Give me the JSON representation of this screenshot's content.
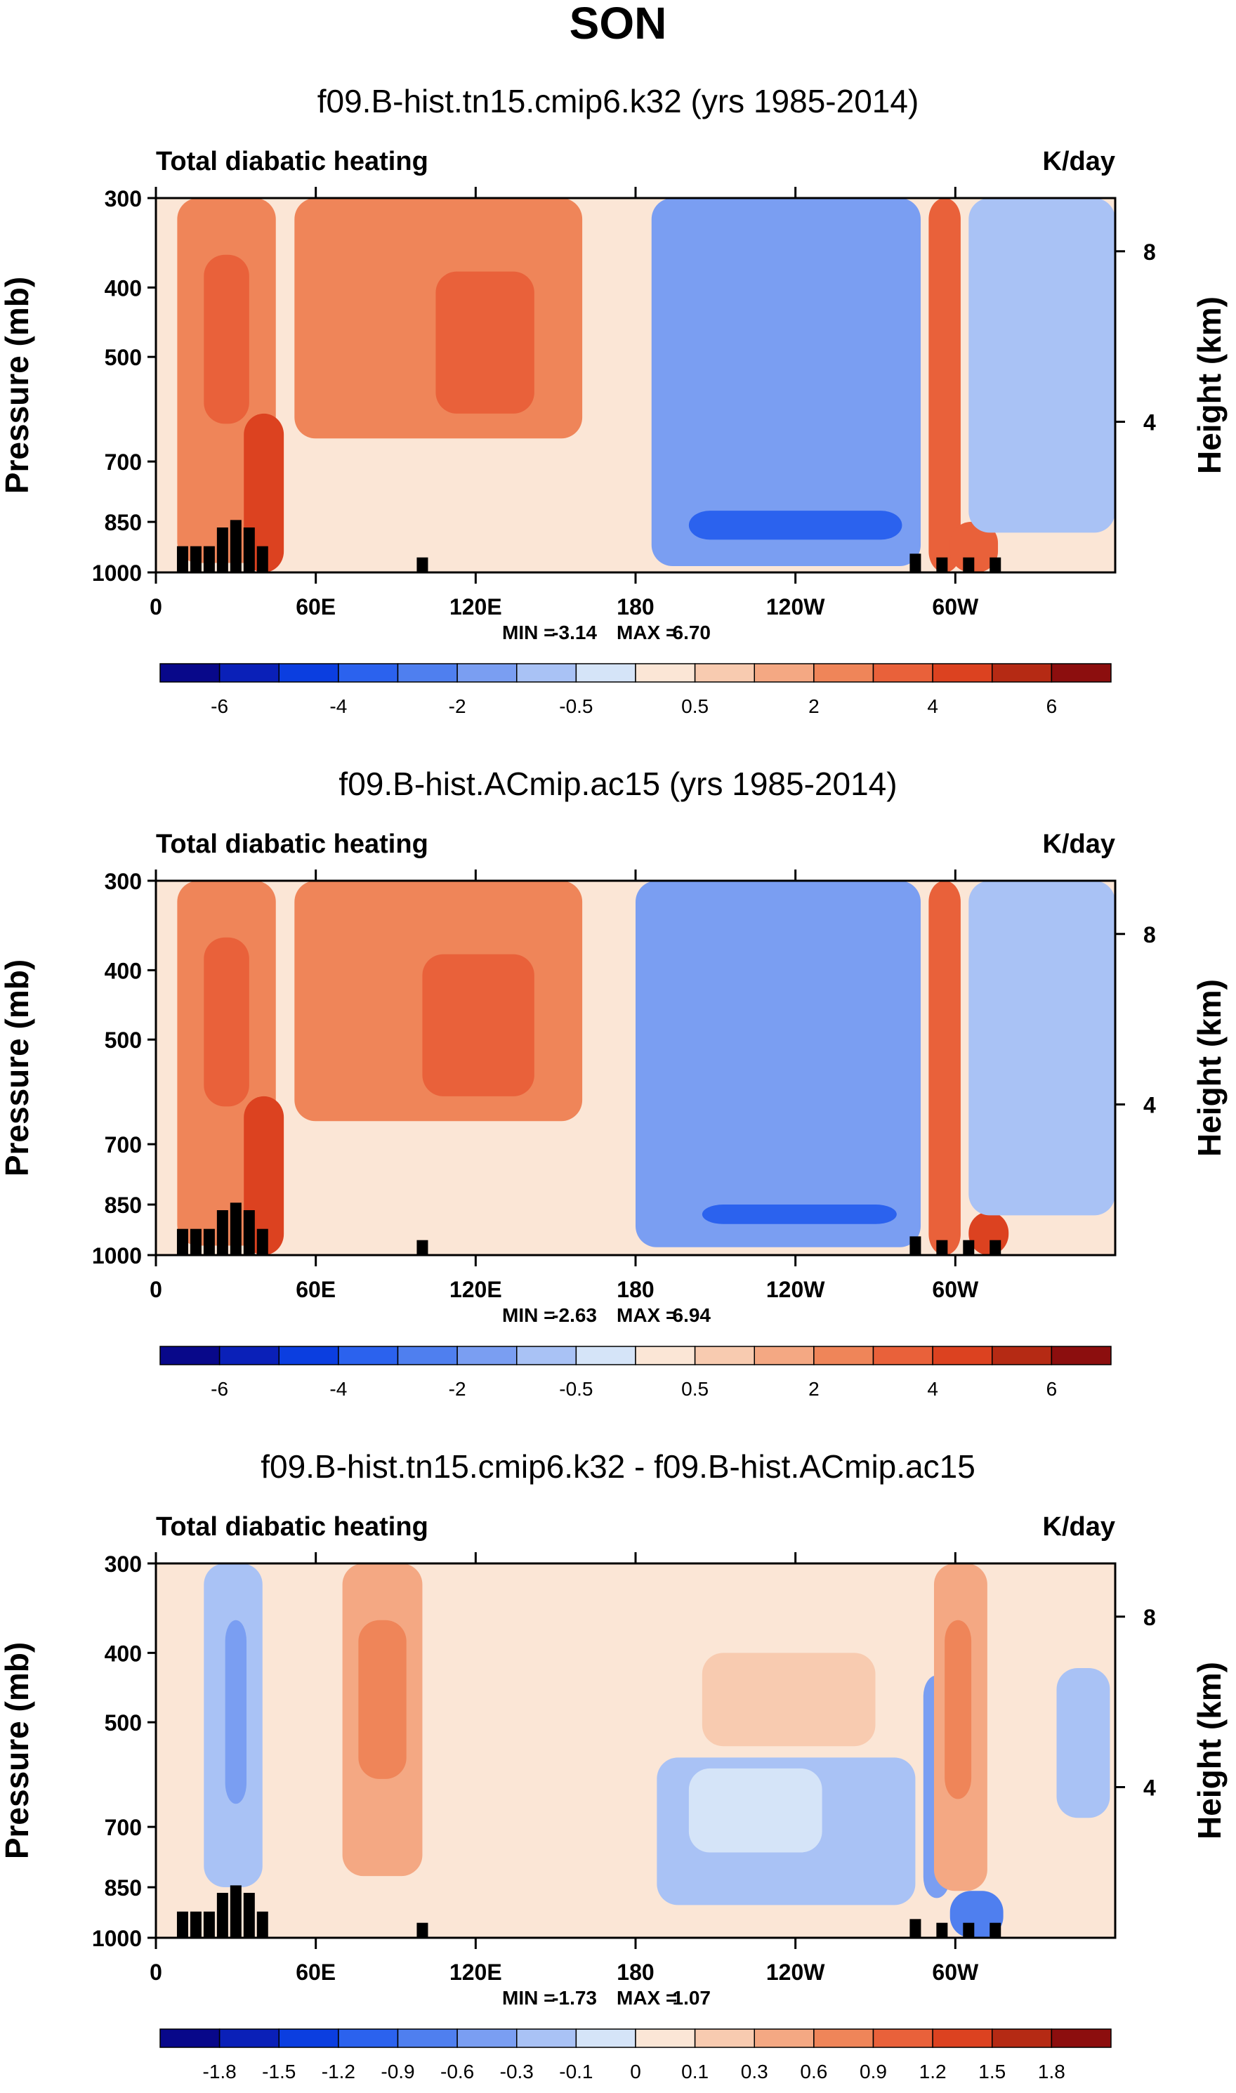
{
  "page_title": "SON",
  "chart_data": [
    {
      "type": "heatmap",
      "title": "f09.B-hist.tn15.cmip6.k32 (yrs 1985-2014)",
      "left_label": "Total diabatic heating",
      "right_label": "K/day",
      "ylabel": "Pressure (mb)",
      "ylabel_right": "Height (km)",
      "pressure_ticks": [
        300,
        400,
        500,
        700,
        850,
        1000
      ],
      "height_ticks": [
        8,
        4
      ],
      "lon_ticks": [
        "0",
        "60E",
        "120E",
        "180",
        "120W",
        "60W"
      ],
      "lon_tick_values": [
        0,
        60,
        120,
        180,
        240,
        300
      ],
      "xlim": [
        0,
        360
      ],
      "ylim": [
        1000,
        300
      ],
      "min_label": "MIN =",
      "min_value": "-3.14",
      "max_label": "MAX =",
      "max_value": "6.70",
      "colorbar_labels": [
        "-6",
        "-4",
        "-2",
        "-0.5",
        "0.5",
        "2",
        "4",
        "6"
      ],
      "colorbar_colors": [
        "#08088a",
        "#0a20b8",
        "#0b3ee0",
        "#2b62ee",
        "#4f7fef",
        "#7a9ef2",
        "#a9c2f5",
        "#d5e4f8",
        "#fbe6d6",
        "#f8cbb0",
        "#f4a883",
        "#ef8559",
        "#e9613a",
        "#dc4220",
        "#b52a14",
        "#8c0e0e"
      ],
      "regions": [
        {
          "lon0": 186,
          "lon1": 287,
          "p0": 300,
          "p1": 980,
          "level": 5
        },
        {
          "lon0": 200,
          "lon1": 280,
          "p0": 820,
          "p1": 900,
          "level": 3
        },
        {
          "lon0": 8,
          "lon1": 45,
          "p0": 300,
          "p1": 970,
          "level": 11
        },
        {
          "lon0": 18,
          "lon1": 35,
          "p0": 360,
          "p1": 620,
          "level": 12
        },
        {
          "lon0": 33,
          "lon1": 48,
          "p0": 600,
          "p1": 1000,
          "level": 13
        },
        {
          "lon0": 52,
          "lon1": 160,
          "p0": 300,
          "p1": 650,
          "level": 11
        },
        {
          "lon0": 105,
          "lon1": 142,
          "p0": 380,
          "p1": 600,
          "level": 12
        },
        {
          "lon0": 290,
          "lon1": 302,
          "p0": 300,
          "p1": 1000,
          "level": 12
        },
        {
          "lon0": 298,
          "lon1": 316,
          "p0": 850,
          "p1": 1000,
          "level": 12
        },
        {
          "lon0": 305,
          "lon1": 360,
          "p0": 300,
          "p1": 880,
          "level": 6
        }
      ],
      "topography": [
        [
          10,
          0.93
        ],
        [
          15,
          0.93
        ],
        [
          20,
          0.93
        ],
        [
          25,
          0.88
        ],
        [
          30,
          0.86
        ],
        [
          35,
          0.88
        ],
        [
          40,
          0.93
        ],
        [
          100,
          0.96
        ],
        [
          285,
          0.95
        ],
        [
          295,
          0.96
        ],
        [
          305,
          0.96
        ],
        [
          315,
          0.96
        ]
      ]
    },
    {
      "type": "heatmap",
      "title": "f09.B-hist.ACmip.ac15 (yrs 1985-2014)",
      "left_label": "Total diabatic heating",
      "right_label": "K/day",
      "ylabel": "Pressure (mb)",
      "ylabel_right": "Height (km)",
      "pressure_ticks": [
        300,
        400,
        500,
        700,
        850,
        1000
      ],
      "height_ticks": [
        8,
        4
      ],
      "lon_ticks": [
        "0",
        "60E",
        "120E",
        "180",
        "120W",
        "60W"
      ],
      "lon_tick_values": [
        0,
        60,
        120,
        180,
        240,
        300
      ],
      "xlim": [
        0,
        360
      ],
      "ylim": [
        1000,
        300
      ],
      "min_label": "MIN =",
      "min_value": "-2.63",
      "max_label": "MAX =",
      "max_value": "6.94",
      "colorbar_labels": [
        "-6",
        "-4",
        "-2",
        "-0.5",
        "0.5",
        "2",
        "4",
        "6"
      ],
      "colorbar_colors": [
        "#08088a",
        "#0a20b8",
        "#0b3ee0",
        "#2b62ee",
        "#4f7fef",
        "#7a9ef2",
        "#a9c2f5",
        "#d5e4f8",
        "#fbe6d6",
        "#f8cbb0",
        "#f4a883",
        "#ef8559",
        "#e9613a",
        "#dc4220",
        "#b52a14",
        "#8c0e0e"
      ],
      "regions": [
        {
          "lon0": 180,
          "lon1": 287,
          "p0": 300,
          "p1": 975,
          "level": 5
        },
        {
          "lon0": 205,
          "lon1": 278,
          "p0": 850,
          "p1": 905,
          "level": 3
        },
        {
          "lon0": 8,
          "lon1": 45,
          "p0": 300,
          "p1": 970,
          "level": 11
        },
        {
          "lon0": 18,
          "lon1": 35,
          "p0": 360,
          "p1": 620,
          "level": 12
        },
        {
          "lon0": 33,
          "lon1": 48,
          "p0": 600,
          "p1": 1000,
          "level": 13
        },
        {
          "lon0": 52,
          "lon1": 160,
          "p0": 300,
          "p1": 650,
          "level": 11
        },
        {
          "lon0": 100,
          "lon1": 142,
          "p0": 380,
          "p1": 600,
          "level": 12
        },
        {
          "lon0": 290,
          "lon1": 302,
          "p0": 300,
          "p1": 1000,
          "level": 12
        },
        {
          "lon0": 305,
          "lon1": 320,
          "p0": 870,
          "p1": 1000,
          "level": 13
        },
        {
          "lon0": 305,
          "lon1": 360,
          "p0": 300,
          "p1": 880,
          "level": 6
        }
      ],
      "topography": [
        [
          10,
          0.93
        ],
        [
          15,
          0.93
        ],
        [
          20,
          0.93
        ],
        [
          25,
          0.88
        ],
        [
          30,
          0.86
        ],
        [
          35,
          0.88
        ],
        [
          40,
          0.93
        ],
        [
          100,
          0.96
        ],
        [
          285,
          0.95
        ],
        [
          295,
          0.96
        ],
        [
          305,
          0.96
        ],
        [
          315,
          0.96
        ]
      ]
    },
    {
      "type": "heatmap",
      "title": "f09.B-hist.tn15.cmip6.k32 - f09.B-hist.ACmip.ac15",
      "left_label": "Total diabatic heating",
      "right_label": "K/day",
      "ylabel": "Pressure (mb)",
      "ylabel_right": "Height (km)",
      "pressure_ticks": [
        300,
        400,
        500,
        700,
        850,
        1000
      ],
      "height_ticks": [
        8,
        4
      ],
      "lon_ticks": [
        "0",
        "60E",
        "120E",
        "180",
        "120W",
        "60W"
      ],
      "lon_tick_values": [
        0,
        60,
        120,
        180,
        240,
        300
      ],
      "xlim": [
        0,
        360
      ],
      "ylim": [
        1000,
        300
      ],
      "min_label": "MIN =",
      "min_value": "-1.73",
      "max_label": "MAX =",
      "max_value": "1.07",
      "colorbar_labels": [
        "-1.8",
        "-1.5",
        "-1.2",
        "-0.9",
        "-0.6",
        "-0.3",
        "-0.1",
        "0",
        "0.1",
        "0.3",
        "0.6",
        "0.9",
        "1.2",
        "1.5",
        "1.8"
      ],
      "colorbar_colors": [
        "#08088a",
        "#0a20b8",
        "#0b3ee0",
        "#2b62ee",
        "#4f7fef",
        "#7a9ef2",
        "#a9c2f5",
        "#d5e4f8",
        "#fbe6d6",
        "#f8cbb0",
        "#f4a883",
        "#ef8559",
        "#e9613a",
        "#dc4220",
        "#b52a14",
        "#8c0e0e"
      ],
      "regions": [
        {
          "lon0": 188,
          "lon1": 285,
          "p0": 560,
          "p1": 900,
          "level": 6
        },
        {
          "lon0": 200,
          "lon1": 250,
          "p0": 580,
          "p1": 760,
          "level": 7
        },
        {
          "lon0": 18,
          "lon1": 40,
          "p0": 300,
          "p1": 850,
          "level": 6
        },
        {
          "lon0": 26,
          "lon1": 34,
          "p0": 360,
          "p1": 650,
          "level": 5
        },
        {
          "lon0": 70,
          "lon1": 100,
          "p0": 300,
          "p1": 820,
          "level": 10
        },
        {
          "lon0": 76,
          "lon1": 94,
          "p0": 360,
          "p1": 600,
          "level": 11
        },
        {
          "lon0": 150,
          "lon1": 185,
          "p0": 300,
          "p1": 580,
          "level": 8
        },
        {
          "lon0": 205,
          "lon1": 270,
          "p0": 400,
          "p1": 540,
          "level": 9
        },
        {
          "lon0": 288,
          "lon1": 298,
          "p0": 430,
          "p1": 880,
          "level": 5
        },
        {
          "lon0": 292,
          "lon1": 312,
          "p0": 300,
          "p1": 860,
          "level": 10
        },
        {
          "lon0": 296,
          "lon1": 306,
          "p0": 360,
          "p1": 640,
          "level": 11
        },
        {
          "lon0": 298,
          "lon1": 318,
          "p0": 860,
          "p1": 1000,
          "level": 4
        },
        {
          "lon0": 338,
          "lon1": 358,
          "p0": 420,
          "p1": 680,
          "level": 6
        }
      ],
      "topography": [
        [
          10,
          0.93
        ],
        [
          15,
          0.93
        ],
        [
          20,
          0.93
        ],
        [
          25,
          0.88
        ],
        [
          30,
          0.86
        ],
        [
          35,
          0.88
        ],
        [
          40,
          0.93
        ],
        [
          100,
          0.96
        ],
        [
          285,
          0.95
        ],
        [
          295,
          0.96
        ],
        [
          305,
          0.96
        ],
        [
          315,
          0.96
        ]
      ]
    }
  ]
}
